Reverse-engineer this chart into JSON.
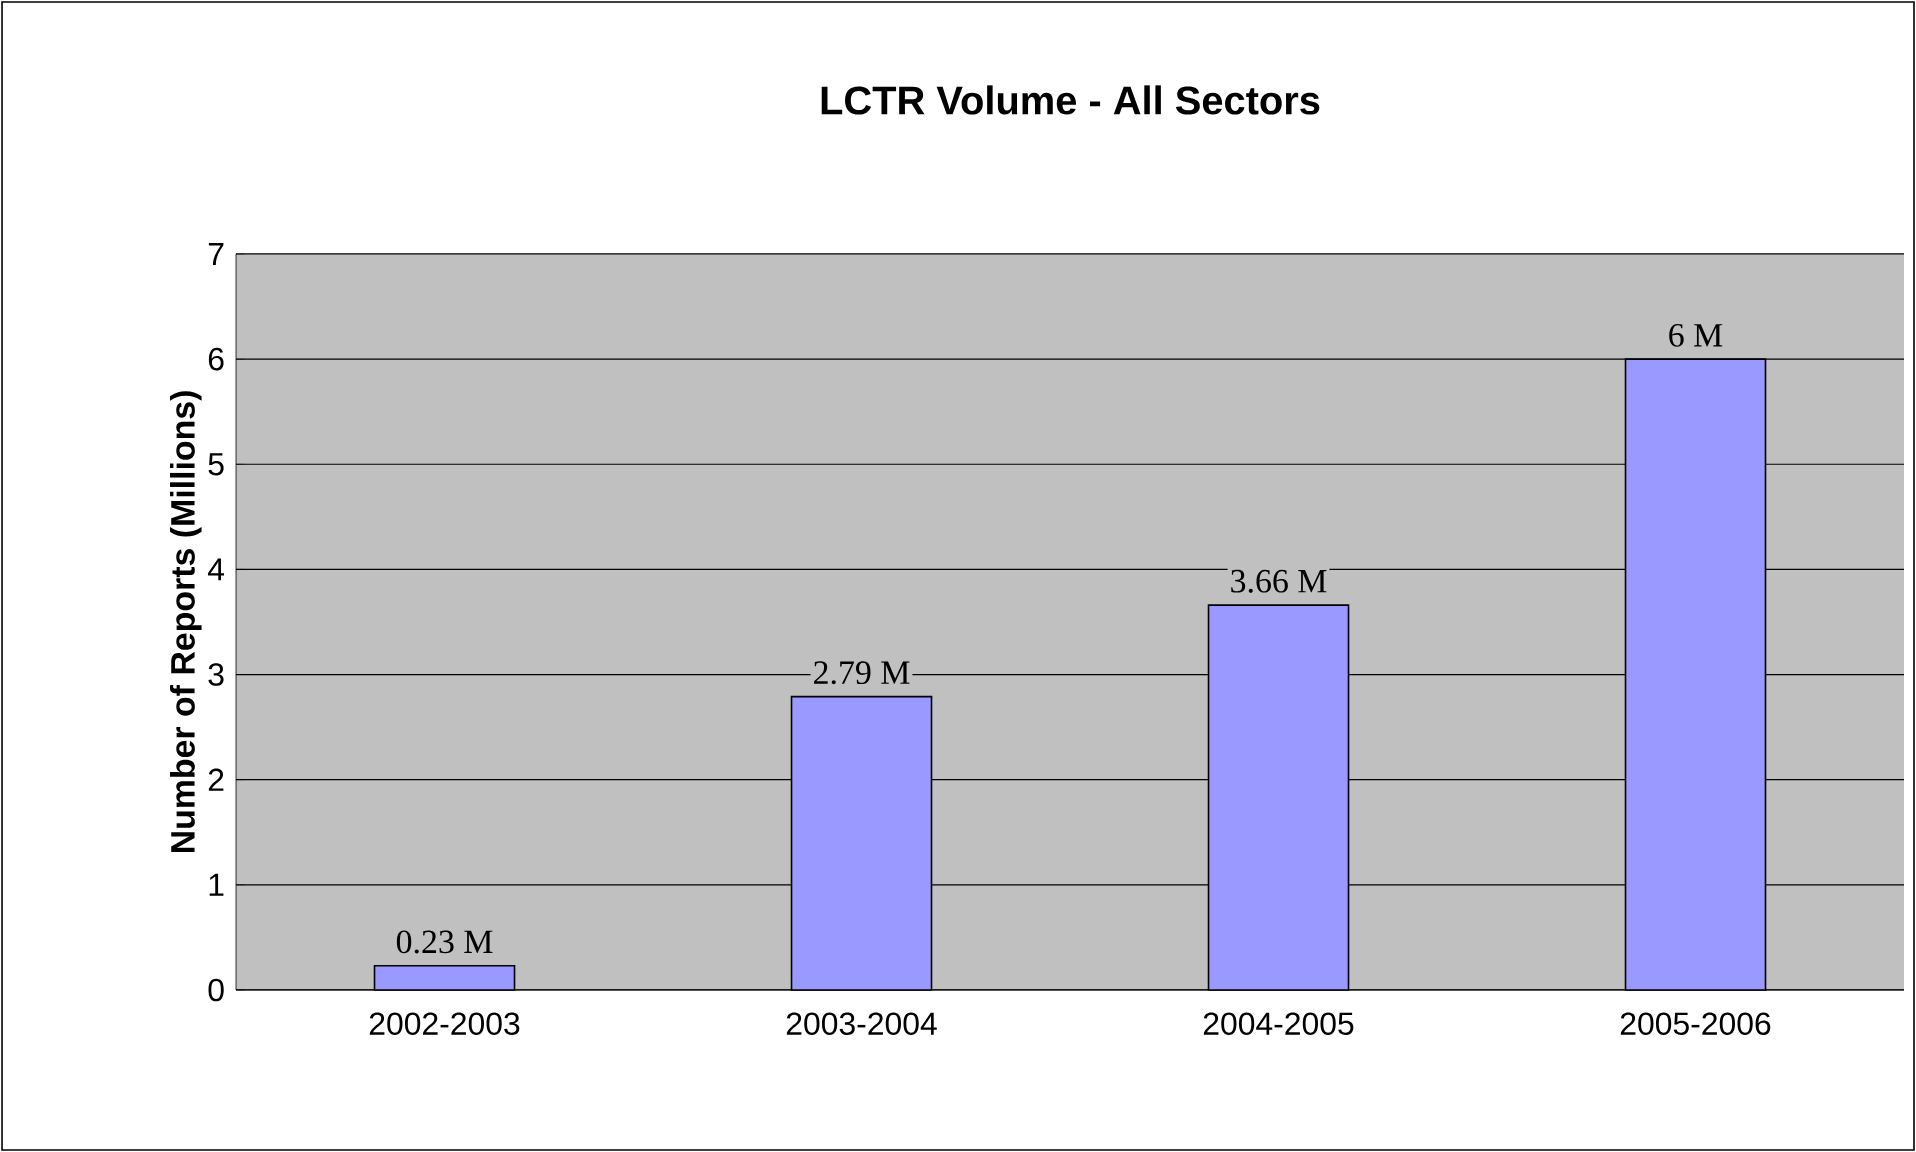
{
  "chart_data": {
    "type": "bar",
    "title": "LCTR Volume - All Sectors",
    "ylabel": "Number of Reports (Millions)",
    "categories": [
      "2002-2003",
      "2003-2004",
      "2004-2005",
      "2005-2006"
    ],
    "values": [
      0.23,
      2.79,
      3.66,
      6
    ],
    "value_labels": [
      "0.23 M",
      "2.79 M",
      "3.66 M",
      "6 M"
    ],
    "color": "#9999ff",
    "ylim": [
      0,
      7
    ],
    "yticks": [
      0,
      1,
      2,
      3,
      4,
      5,
      6,
      7
    ],
    "grid": "y"
  }
}
